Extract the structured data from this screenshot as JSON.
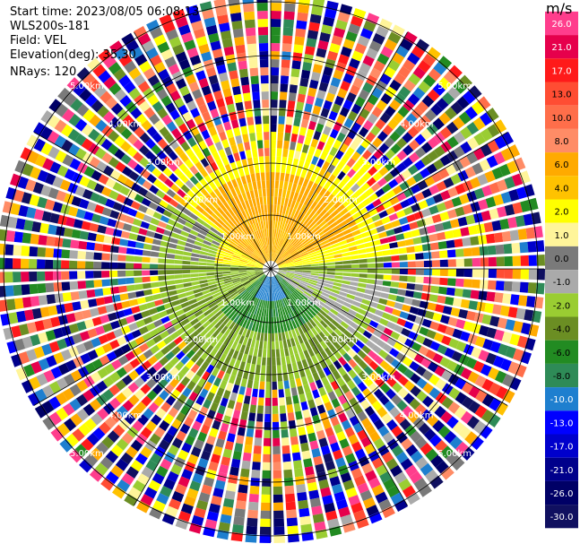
{
  "header": {
    "start_time": "Start time: 2023/08/05 06:08:13",
    "instrument": "WLS200s-181",
    "field": "Field: VEL",
    "elevation": "Elevation(deg): 35.30",
    "nrays": "NRays: 120"
  },
  "colorbar": {
    "unit": "m/s",
    "ticks": [
      "26.0",
      "21.0",
      "17.0",
      "13.0",
      "10.0",
      "8.0",
      "6.0",
      "4.0",
      "2.0",
      "1.0",
      "0.0",
      "-1.0",
      "-2.0",
      "-4.0",
      "-6.0",
      "-8.0",
      "-10.0",
      "-13.0",
      "-17.0",
      "-21.0",
      "-26.0",
      "-30.0"
    ],
    "colors": [
      "#ff3d8c",
      "#e6004c",
      "#ff1a1a",
      "#ff4d33",
      "#ff6e4a",
      "#ff8c66",
      "#ffaa00",
      "#ffc200",
      "#ffff00",
      "#fff59a",
      "#7a7a7a",
      "#aaaaaa",
      "#9acd32",
      "#6b8e23",
      "#228b22",
      "#2e8b57",
      "#1e7fcf",
      "#0000ff",
      "#0000cc",
      "#00008b",
      "#000066",
      "#101060"
    ]
  },
  "rings": {
    "labels": [
      "1.00km",
      "2.00km",
      "3.00km",
      "4.00km",
      "5.00km"
    ]
  }
}
